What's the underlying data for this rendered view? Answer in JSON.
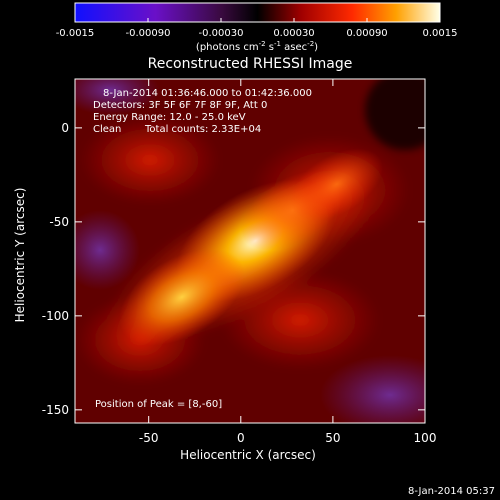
{
  "colorbar": {
    "tick_labels": [
      "-0.0015",
      "-0.00090",
      "-0.00030",
      "0.00030",
      "0.00090",
      "0.0015"
    ],
    "range": [
      -0.0015,
      0.0015
    ],
    "unit_prefix": "(photons cm",
    "unit_exp1": "-2",
    "unit_mid": " s",
    "unit_exp2": "-1",
    "unit_suffix": " asec",
    "unit_exp3": "-2",
    "unit_close": ")"
  },
  "chart_data": {
    "type": "heatmap",
    "title": "Reconstructed RHESSI Image",
    "xlabel": "Heliocentric X (arcsec)",
    "ylabel": "Heliocentric Y (arcsec)",
    "xlim": [
      -90,
      100
    ],
    "ylim": [
      -157,
      26
    ],
    "x_ticks": [
      -50,
      0,
      50,
      100
    ],
    "y_ticks": [
      0,
      -50,
      -100,
      -150
    ],
    "annotations": [
      "8-Jan-2014 01:36:46.000 to 01:42:36.000",
      "Detectors: 3F 5F 6F 7F 8F 9F, Att 0",
      "Energy Range: 12.0 - 25.0 keV",
      "Clean",
      "Total counts: 2.33E+04"
    ],
    "peak_label": "Position of Peak = [8,-60]",
    "peak": [
      8,
      -60
    ],
    "sources": [
      {
        "x": 8,
        "y": -60,
        "intensity": 0.0015
      },
      {
        "x": -32,
        "y": -90,
        "intensity": 0.00105
      },
      {
        "x": 28,
        "y": -44,
        "intensity": 0.00075
      },
      {
        "x": 52,
        "y": -30,
        "intensity": 0.0006
      }
    ]
  },
  "timestamp": "8-Jan-2014 05:37"
}
